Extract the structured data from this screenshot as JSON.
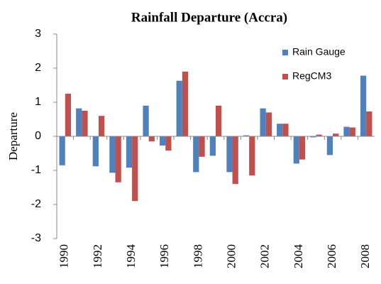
{
  "chart_data": {
    "type": "bar",
    "title": "Rainfall Departure (Accra)",
    "y_label": "Departure",
    "categories": [
      "1990",
      null,
      "1992",
      null,
      "1994",
      null,
      "1996",
      null,
      "1998",
      null,
      "2000",
      null,
      "2002",
      null,
      "2004",
      null,
      "2006",
      null,
      "2008"
    ],
    "series": [
      {
        "name": "Rain Gauge",
        "color": "#4f81bd",
        "values": [
          -0.85,
          0.82,
          -0.88,
          -1.07,
          -0.92,
          0.9,
          -0.27,
          1.63,
          -1.05,
          -0.57,
          -1.05,
          0.03,
          0.82,
          0.37,
          -0.8,
          -0.03,
          -0.55,
          0.28,
          1.78
        ]
      },
      {
        "name": "RegCM3",
        "color": "#c0504d",
        "values": [
          1.25,
          0.75,
          0.6,
          -1.35,
          -1.9,
          -0.15,
          -0.42,
          1.9,
          -0.6,
          0.9,
          -1.4,
          -1.15,
          0.7,
          0.37,
          -0.68,
          0.05,
          0.08,
          0.26,
          0.73
        ]
      }
    ],
    "ylim": [
      -3,
      3
    ],
    "yticks": [
      -3,
      -2,
      -1,
      0,
      1,
      2,
      3
    ],
    "grid": false,
    "legend": "top-right"
  }
}
